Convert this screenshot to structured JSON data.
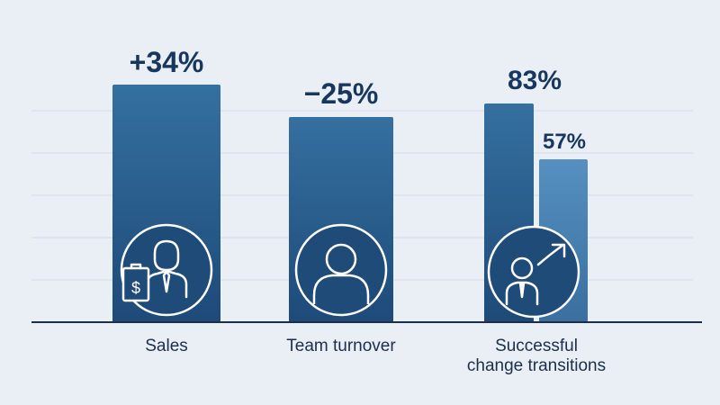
{
  "chart_data": {
    "type": "bar",
    "title": "",
    "xlabel": "",
    "ylabel": "",
    "grid": true,
    "categories": [
      "Sales",
      "Team turnover",
      "Successful change transitions"
    ],
    "category_lines": [
      [
        "Sales"
      ],
      [
        "Team turnover"
      ],
      [
        "Successful",
        "change transitions"
      ]
    ],
    "bars": [
      {
        "category": "Sales",
        "label": "+34%",
        "value": 34,
        "color": "#2a5e8f",
        "icon": "salesperson-dollar-icon"
      },
      {
        "category": "Team turnover",
        "label": "−25%",
        "value": -25,
        "color": "#2a5e8f",
        "icon": "person-icon"
      },
      {
        "category": "Successful change transitions",
        "label": "83%",
        "value": 83,
        "color": "#2a5e8f",
        "icon": "person-growth-arrow-icon"
      },
      {
        "category": "Successful change transitions",
        "label": "57%",
        "value": 57,
        "color": "#4f88b8"
      }
    ],
    "colors": {
      "background": "#eaeff5",
      "bar_dark": "#2a5e8f",
      "bar_light": "#4f88b8",
      "text": "#17375e",
      "axis": "#1b2f4a",
      "grid": "#d3dbe5"
    }
  }
}
